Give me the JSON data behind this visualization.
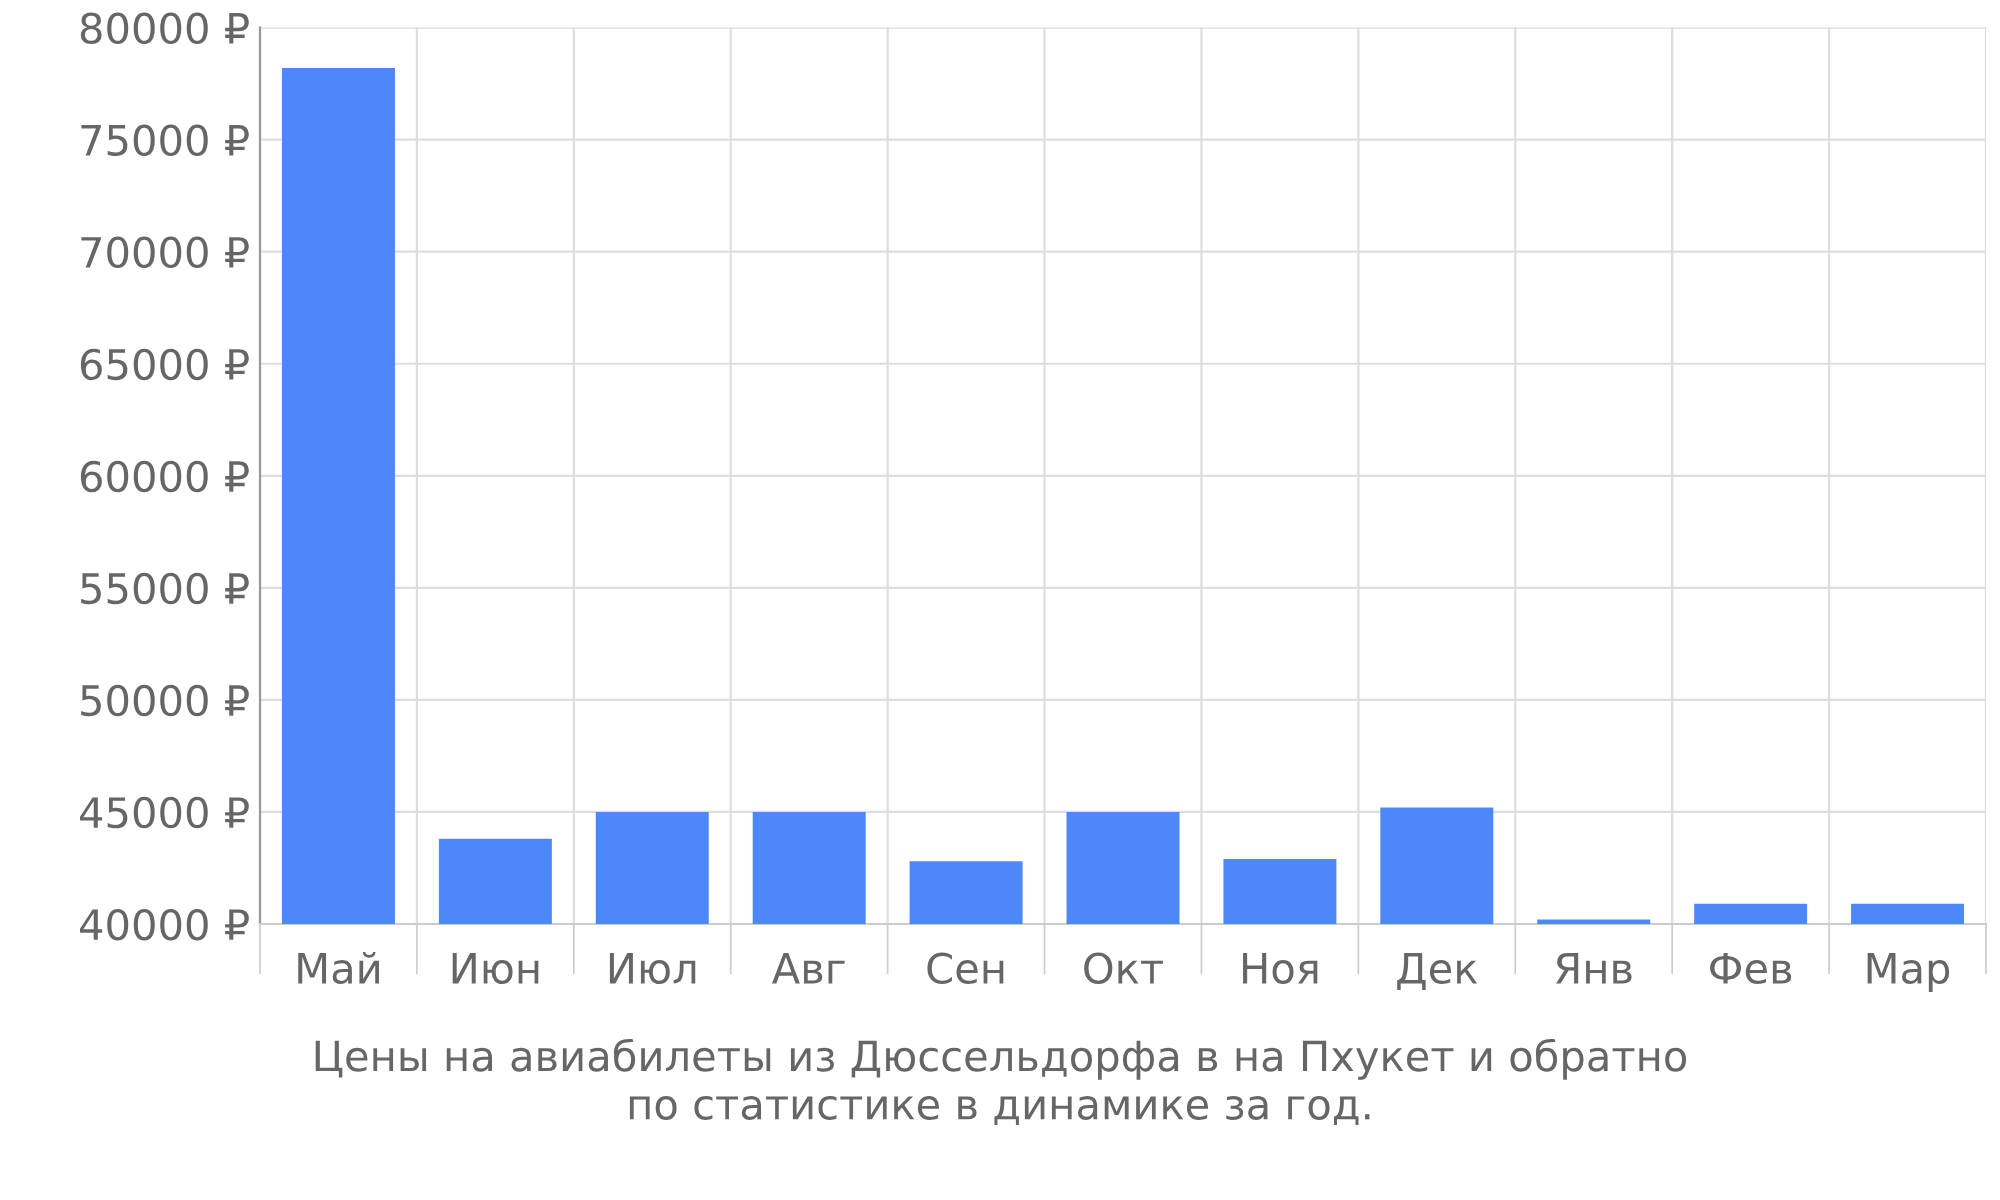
{
  "chart_data": {
    "type": "bar",
    "categories": [
      "Май",
      "Июн",
      "Июл",
      "Авг",
      "Сен",
      "Окт",
      "Ноя",
      "Дек",
      "Янв",
      "Фев",
      "Мар"
    ],
    "values": [
      78200,
      43800,
      45000,
      45000,
      42800,
      45000,
      42900,
      45200,
      40200,
      40900,
      40900
    ],
    "color": "#4d88fa",
    "ylim": [
      40000,
      80000
    ],
    "yticks": [
      {
        "value": 40000,
        "label": "40000 ₽"
      },
      {
        "value": 45000,
        "label": "45000 ₽"
      },
      {
        "value": 50000,
        "label": "50000 ₽"
      },
      {
        "value": 55000,
        "label": "55000 ₽"
      },
      {
        "value": 60000,
        "label": "60000 ₽"
      },
      {
        "value": 65000,
        "label": "65000 ₽"
      },
      {
        "value": 70000,
        "label": "70000 ₽"
      },
      {
        "value": 75000,
        "label": "75000 ₽"
      },
      {
        "value": 80000,
        "label": "80000 ₽"
      }
    ],
    "grid": true,
    "annotations": [
      "Цены на авиабилеты из Дюссельдорфа в на Пхукет и обратно\nпо статистике в динамике за год."
    ]
  }
}
